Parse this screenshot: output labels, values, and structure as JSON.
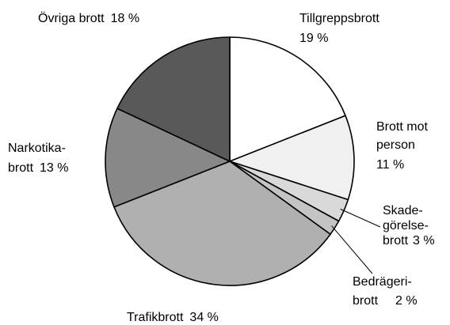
{
  "chart_data": {
    "type": "pie",
    "categories": [
      [
        "Tillgreppsbrott"
      ],
      [
        "Brott mot",
        "person"
      ],
      [
        "Skade-",
        "görelse-",
        "brott"
      ],
      [
        "Bedrägeri-",
        "brott"
      ],
      [
        "Trafikbrott"
      ],
      [
        "Narkotika-",
        "brott"
      ],
      [
        "Övriga brott"
      ]
    ],
    "values": [
      19,
      11,
      3,
      2,
      34,
      13,
      18
    ],
    "value_labels": [
      "19 %",
      "11 %",
      "3 %",
      "2 %",
      "34 %",
      "13 %",
      "18 %"
    ],
    "colors": [
      "#ffffff",
      "#f0f0f0",
      "#d9d9d9",
      "#c4c4c4",
      "#b0b0b0",
      "#888888",
      "#595959"
    ]
  }
}
